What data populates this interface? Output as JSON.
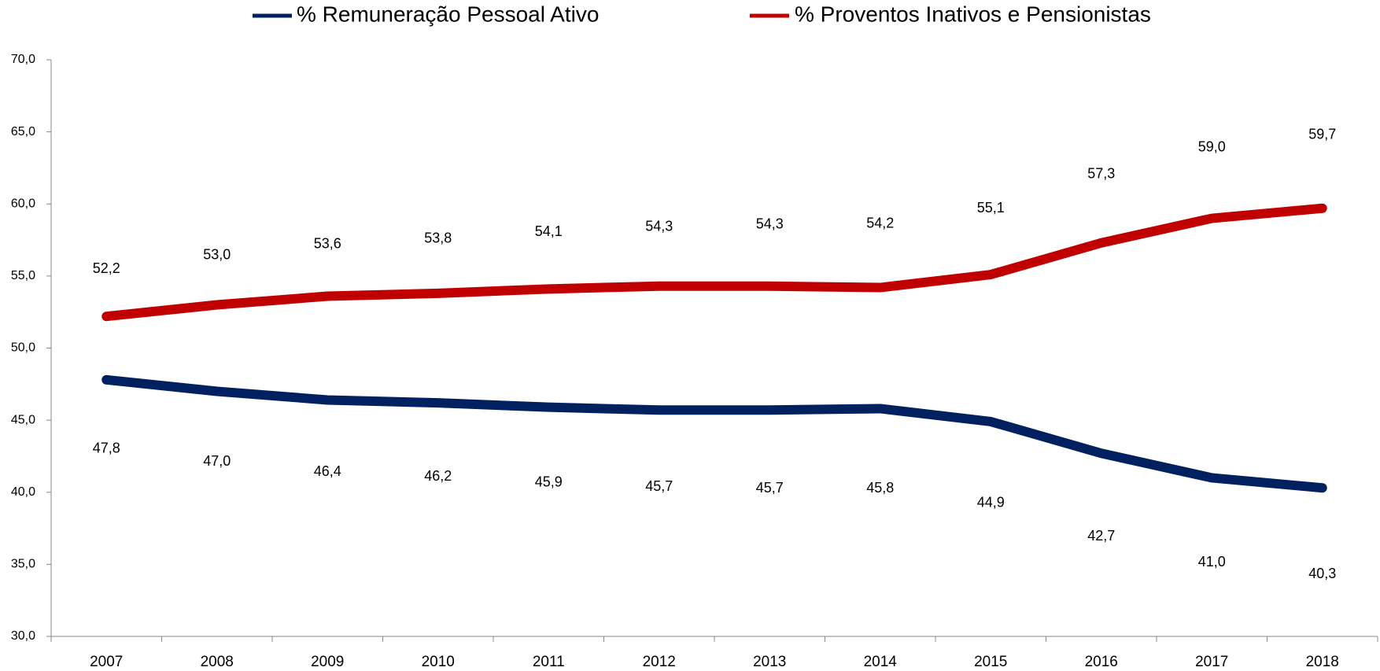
{
  "chart_data": {
    "type": "line",
    "categories": [
      "2007",
      "2008",
      "2009",
      "2010",
      "2011",
      "2012",
      "2013",
      "2014",
      "2015",
      "2016",
      "2017",
      "2018"
    ],
    "series": [
      {
        "name": "% Remuneração  Pessoal  Ativo",
        "color": "#002060",
        "values": [
          47.8,
          47.0,
          46.4,
          46.2,
          45.9,
          45.7,
          45.7,
          45.8,
          44.9,
          42.7,
          41.0,
          40.3
        ],
        "value_labels": [
          "47,8",
          "47,0",
          "46,4",
          "46,2",
          "45,9",
          "45,7",
          "45,7",
          "45,8",
          "44,9",
          "42,7",
          "41,0",
          "40,3"
        ]
      },
      {
        "name": "% Proventos  Inativos  e  Pensionistas",
        "color": "#c00000",
        "values": [
          52.2,
          53.0,
          53.6,
          53.8,
          54.1,
          54.3,
          54.3,
          54.2,
          55.1,
          57.3,
          59.0,
          59.7
        ],
        "value_labels": [
          "52,2",
          "53,0",
          "53,6",
          "53,8",
          "54,1",
          "54,3",
          "54,3",
          "54,2",
          "55,1",
          "57,3",
          "59,0",
          "59,7"
        ]
      }
    ],
    "ylim": [
      30,
      70
    ],
    "yticks": [
      {
        "value": 30,
        "label": "30,0"
      },
      {
        "value": 35,
        "label": "35,0"
      },
      {
        "value": 40,
        "label": "40,0"
      },
      {
        "value": 45,
        "label": "45,0"
      },
      {
        "value": 50,
        "label": "50,0"
      },
      {
        "value": 55,
        "label": "55,0"
      },
      {
        "value": 60,
        "label": "60,0"
      },
      {
        "value": 65,
        "label": "65,0"
      },
      {
        "value": 70,
        "label": "70,0"
      }
    ],
    "grid": false,
    "legend": "top"
  }
}
